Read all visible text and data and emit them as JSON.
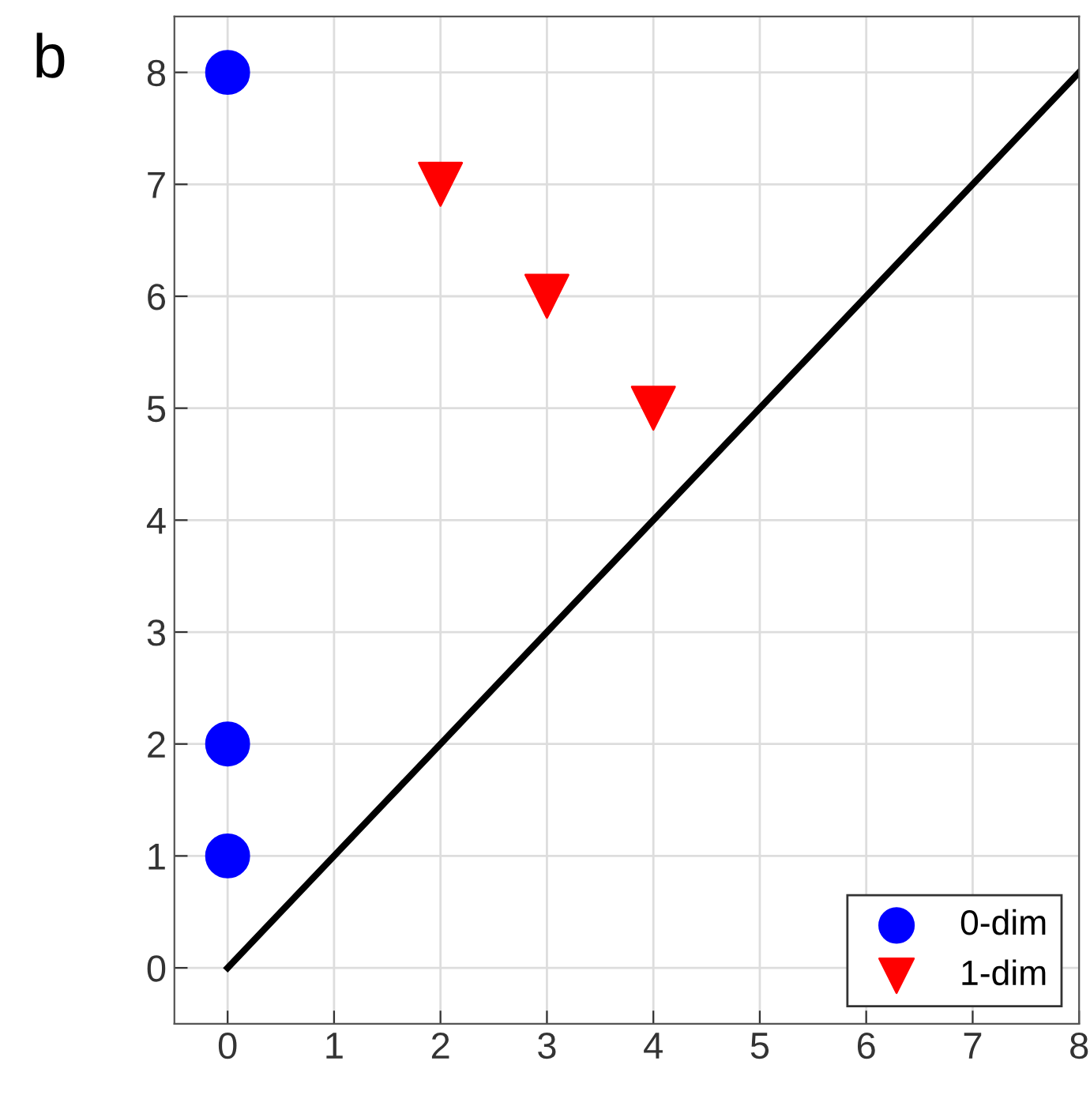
{
  "chart_data": {
    "type": "scatter",
    "annotations": [
      "b"
    ],
    "xlim": [
      -0.5,
      8
    ],
    "ylim": [
      -0.5,
      8.5
    ],
    "xticks": [
      0,
      1,
      2,
      3,
      4,
      5,
      6,
      7,
      8
    ],
    "yticks": [
      0,
      1,
      2,
      3,
      4,
      5,
      6,
      7,
      8
    ],
    "grid": true,
    "legend": "bottom right",
    "series": [
      {
        "name": "0-dim",
        "marker": "circle",
        "color": "#0000ff",
        "x": [
          0,
          0,
          0
        ],
        "values": [
          8,
          2,
          1
        ]
      },
      {
        "name": "1-dim",
        "marker": "triangle_down",
        "color": "#ff0000",
        "x": [
          2,
          3,
          4
        ],
        "values": [
          7,
          6,
          5
        ]
      },
      {
        "type": "line",
        "marker": "none",
        "line_style": "solid",
        "color": "#000000",
        "x": [
          0,
          8
        ],
        "values": [
          0,
          8
        ]
      }
    ]
  }
}
